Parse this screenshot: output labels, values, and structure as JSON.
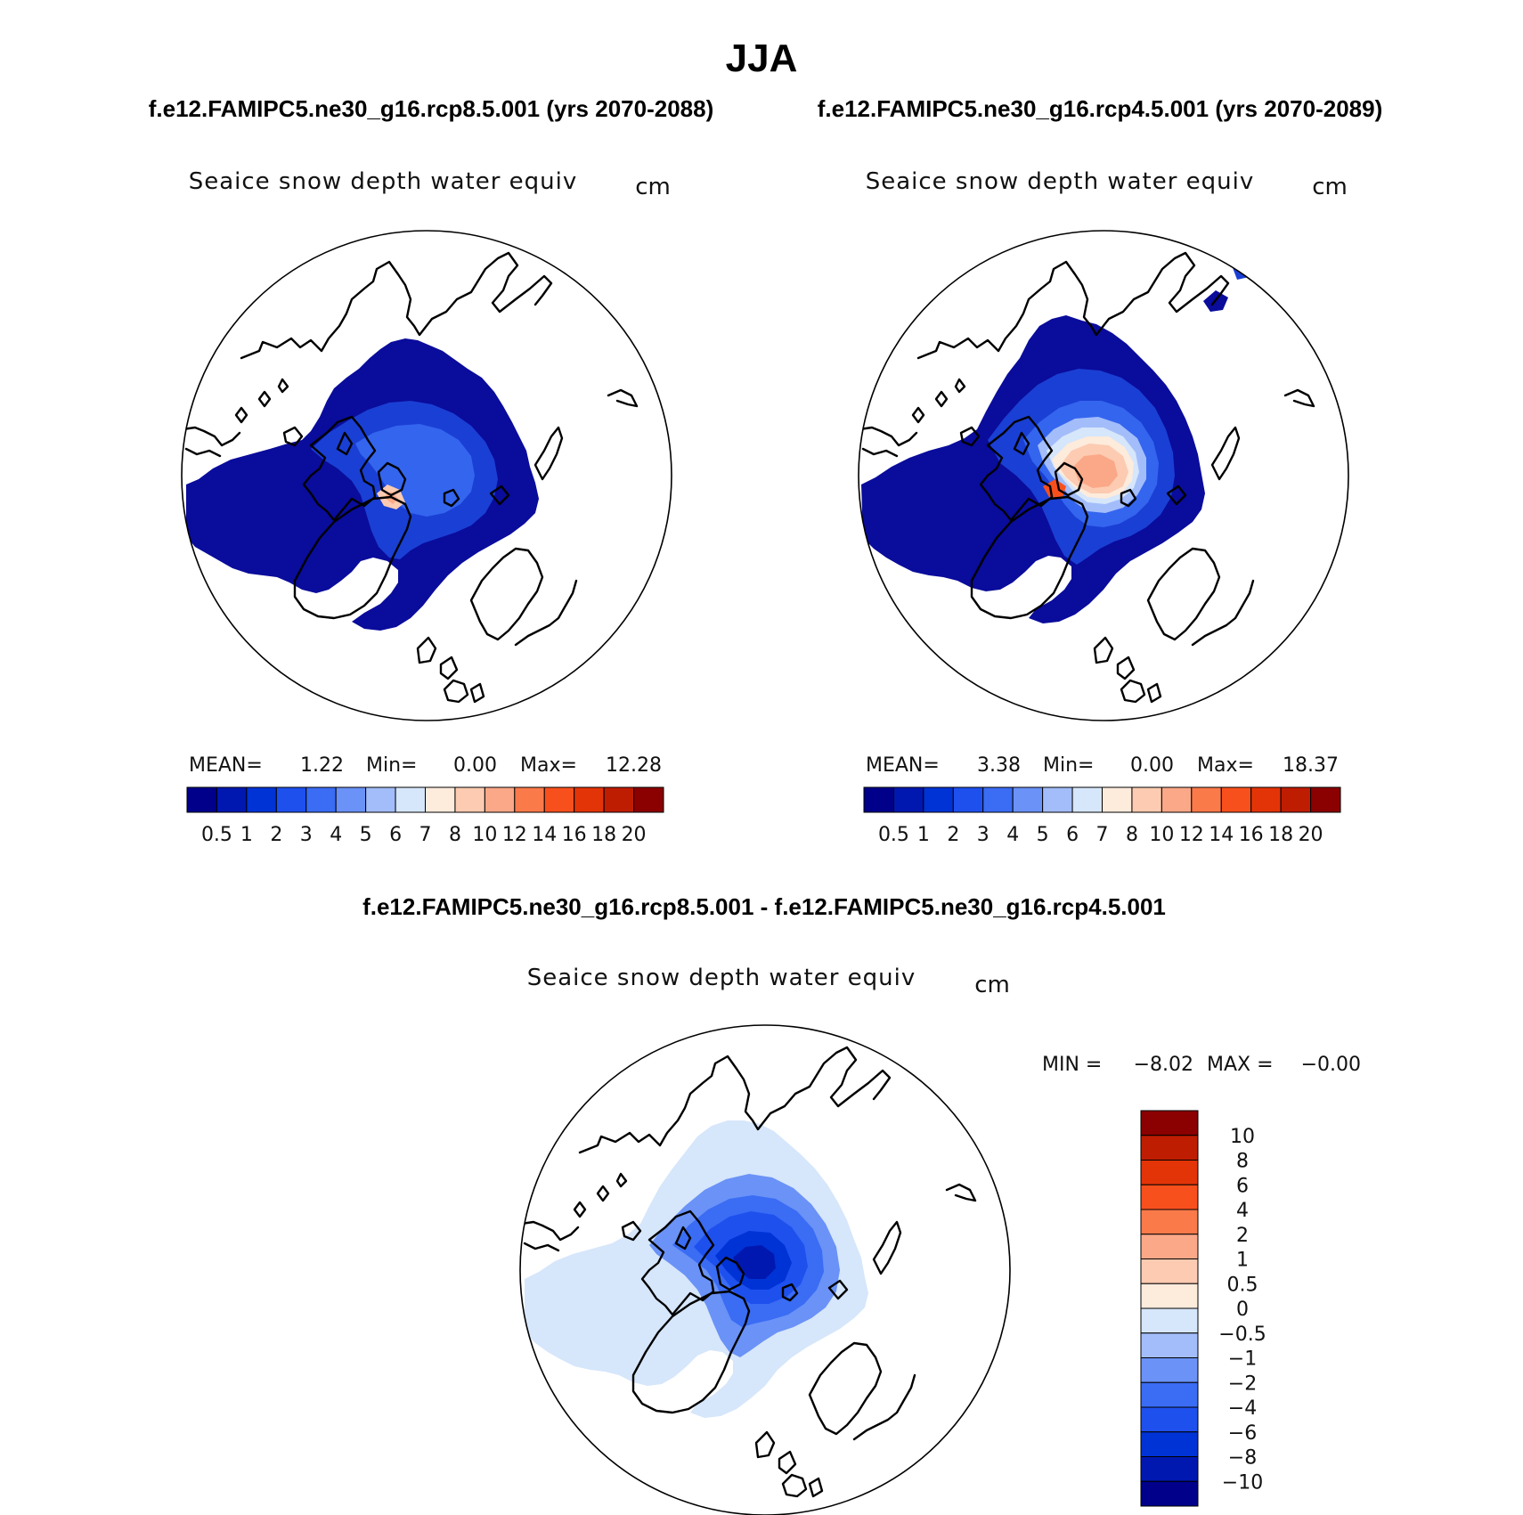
{
  "title": "JJA",
  "colors": {
    "seq": [
      "#00008b",
      "#0018b0",
      "#0033d6",
      "#1e50ee",
      "#3a6cf4",
      "#6a92f7",
      "#a3bdfa",
      "#d6e6fb",
      "#fdebdc",
      "#fccbb1",
      "#fba888",
      "#fb7a4a",
      "#f8501d",
      "#e33408",
      "#bf1d02",
      "#8b0000"
    ],
    "diff": [
      "#00008b",
      "#0018b0",
      "#0033d6",
      "#1e50ee",
      "#3a6cf4",
      "#6a92f7",
      "#a3bdfa",
      "#d6e6fb",
      "#fdebdc",
      "#fccbb1",
      "#fba888",
      "#fb7a4a",
      "#f8501d",
      "#e33408",
      "#bf1d02",
      "#8b0000"
    ]
  },
  "panels": {
    "left": {
      "case": "f.e12.FAMIPC5.ne30_g16.rcp8.5.001 (yrs 2070-2088)",
      "field": "Seaice snow depth water equiv",
      "units": "cm",
      "stats": {
        "mean_label": "MEAN=",
        "mean": "1.22",
        "min_label": "Min=",
        "min": "0.00",
        "max_label": "Max=",
        "max": "12.28"
      }
    },
    "right": {
      "case": "f.e12.FAMIPC5.ne30_g16.rcp4.5.001 (yrs 2070-2089)",
      "field": "Seaice snow depth water equiv",
      "units": "cm",
      "stats": {
        "mean_label": "MEAN=",
        "mean": "3.38",
        "min_label": "Min=",
        "min": "0.00",
        "max_label": "Max=",
        "max": "18.37"
      }
    },
    "diff": {
      "case": "f.e12.FAMIPC5.ne30_g16.rcp8.5.001 - f.e12.FAMIPC5.ne30_g16.rcp4.5.001",
      "field": "Seaice snow depth water equiv",
      "units": "cm",
      "stats": {
        "min_label": "MIN =",
        "min": "−8.02",
        "max_label": "MAX =",
        "max": "−0.00"
      }
    }
  },
  "colorbar_levels": [
    "0.5",
    "1",
    "2",
    "3",
    "4",
    "5",
    "6",
    "7",
    "8",
    "10",
    "12",
    "14",
    "16",
    "18",
    "20"
  ],
  "diff_levels": [
    "10",
    "8",
    "6",
    "4",
    "2",
    "1",
    "0.5",
    "0",
    "−0.5",
    "−1",
    "−2",
    "−4",
    "−6",
    "−8",
    "−10"
  ]
}
